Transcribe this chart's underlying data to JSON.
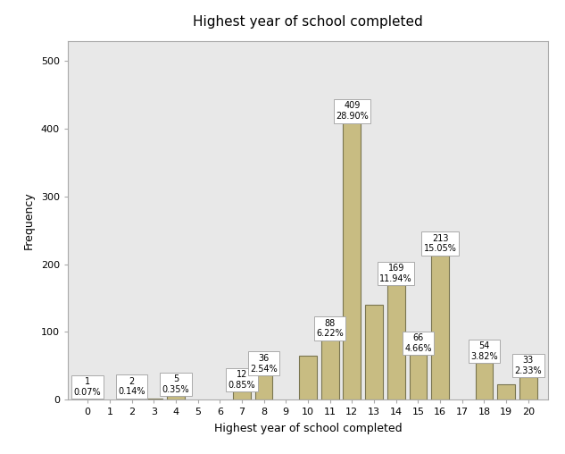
{
  "title": "Highest year of school completed",
  "xlabel": "Highest year of school completed",
  "ylabel": "Frequency",
  "bar_x": [
    0,
    2,
    3,
    4,
    7,
    8,
    10,
    11,
    12,
    13,
    14,
    15,
    16,
    18,
    19,
    20
  ],
  "bar_height": [
    1,
    2,
    2,
    5,
    12,
    36,
    65,
    88,
    409,
    140,
    169,
    66,
    213,
    54,
    22,
    33
  ],
  "labeled": {
    "0": [
      "1",
      "0.07%"
    ],
    "2": [
      "2",
      "0.14%"
    ],
    "4": [
      "5",
      "0.35%"
    ],
    "7": [
      "12",
      "0.85%"
    ],
    "8": [
      "36",
      "2.54%"
    ],
    "11": [
      "88",
      "6.22%"
    ],
    "12": [
      "409",
      "28.90%"
    ],
    "14": [
      "169",
      "11.94%"
    ],
    "15": [
      "66",
      "4.66%"
    ],
    "16": [
      "213",
      "15.05%"
    ],
    "18": [
      "54",
      "3.82%"
    ],
    "20": [
      "33",
      "2.33%"
    ]
  },
  "bar_color": "#C8BC82",
  "bar_edge_color": "#7A7550",
  "outer_bg": "#FFFFFF",
  "plot_bg": "#E8E8E8",
  "ylim": [
    0,
    530
  ],
  "yticks": [
    0,
    100,
    200,
    300,
    400,
    500
  ],
  "xticks": [
    0,
    1,
    2,
    3,
    4,
    5,
    6,
    7,
    8,
    9,
    10,
    11,
    12,
    13,
    14,
    15,
    16,
    17,
    18,
    19,
    20
  ],
  "title_fontsize": 11,
  "axis_label_fontsize": 9,
  "tick_fontsize": 8,
  "label_fontsize": 7
}
